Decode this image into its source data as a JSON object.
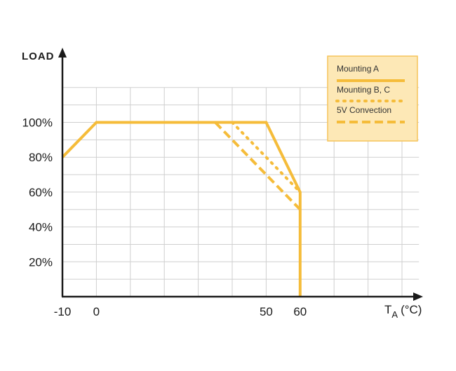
{
  "chart_data": {
    "type": "line",
    "ylabel": "LOAD",
    "xlabel_main": "T",
    "xlabel_sub": "A",
    "xlabel_unit": "(°C)",
    "x_ticks": [
      -10,
      0,
      50,
      60
    ],
    "x_tick_labels": [
      "-10",
      "0",
      "50",
      "60"
    ],
    "y_ticks": [
      20,
      40,
      60,
      80,
      100
    ],
    "y_tick_labels": [
      "20%",
      "40%",
      "60%",
      "80%",
      "100%"
    ],
    "xlim": [
      -10,
      95
    ],
    "ylim": [
      0,
      120
    ],
    "grid": true,
    "legend_position": "top-right",
    "series": [
      {
        "name": "Mounting A",
        "style": "solid",
        "x": [
          -10,
          0,
          50,
          60,
          60
        ],
        "y": [
          80,
          100,
          100,
          60,
          0
        ]
      },
      {
        "name": "Mounting B, C",
        "style": "dotted",
        "x": [
          40,
          60
        ],
        "y": [
          100,
          60
        ]
      },
      {
        "name": "5V Convection",
        "style": "dashed",
        "x": [
          35,
          60
        ],
        "y": [
          100,
          50
        ]
      }
    ],
    "colors": {
      "line": "#f5bc3a",
      "legend_bg": "#fde8b6",
      "legend_border": "#f5c45a",
      "grid": "#cfcfcf",
      "axis": "#1a1a1a"
    }
  }
}
